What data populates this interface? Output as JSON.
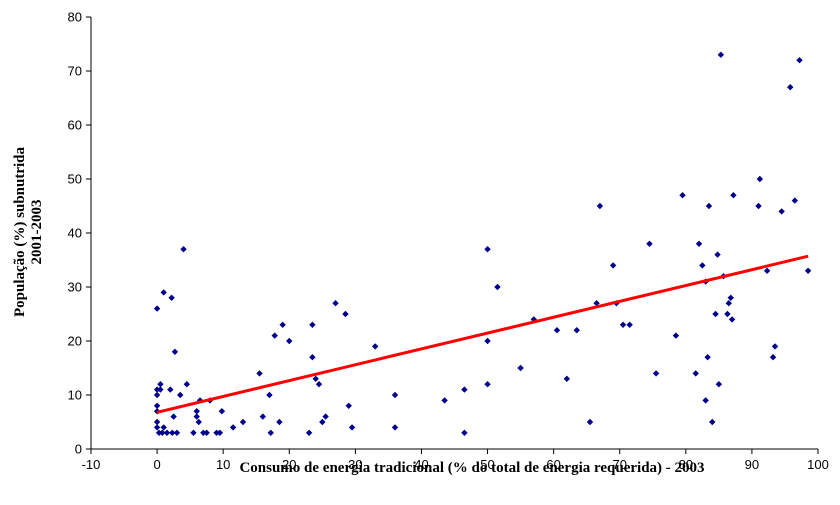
{
  "chart_data": {
    "type": "scatter",
    "xlabel": "Consumo de energia tradicional (% do total de energia requerida) - 2003",
    "ylabel": [
      "População (%) subnutrida",
      "2001-2003"
    ],
    "xlim": [
      -10,
      100
    ],
    "ylim": [
      0,
      80
    ],
    "xticks": [
      -10,
      0,
      10,
      20,
      30,
      40,
      50,
      60,
      70,
      80,
      90,
      100
    ],
    "yticks": [
      0,
      10,
      20,
      30,
      40,
      50,
      60,
      70,
      80
    ],
    "grid": false,
    "legend": "none",
    "marker_color": "#00008B",
    "trendline": {
      "color": "#FF0000",
      "x": [
        0,
        98.5
      ],
      "y": [
        6.8,
        35.7
      ]
    },
    "points": [
      [
        0,
        26
      ],
      [
        0,
        11
      ],
      [
        0,
        10
      ],
      [
        0,
        8
      ],
      [
        0,
        7
      ],
      [
        0,
        5
      ],
      [
        0,
        4
      ],
      [
        0.3,
        3
      ],
      [
        0.5,
        12
      ],
      [
        0.5,
        11
      ],
      [
        0.8,
        3
      ],
      [
        1,
        4
      ],
      [
        1,
        29
      ],
      [
        1.5,
        3
      ],
      [
        2,
        11
      ],
      [
        2.2,
        28
      ],
      [
        2.3,
        3
      ],
      [
        2.5,
        6
      ],
      [
        2.7,
        18
      ],
      [
        3,
        3
      ],
      [
        3.5,
        10
      ],
      [
        4,
        37
      ],
      [
        4.5,
        12
      ],
      [
        5.5,
        3
      ],
      [
        6,
        7
      ],
      [
        6,
        6
      ],
      [
        6.3,
        5
      ],
      [
        6.5,
        9
      ],
      [
        7,
        3
      ],
      [
        7.5,
        3
      ],
      [
        8,
        9
      ],
      [
        9,
        3
      ],
      [
        9.5,
        3
      ],
      [
        9.8,
        7
      ],
      [
        11.5,
        4
      ],
      [
        13,
        5
      ],
      [
        15.5,
        14
      ],
      [
        16,
        6
      ],
      [
        17,
        10
      ],
      [
        17.2,
        3
      ],
      [
        17.8,
        21
      ],
      [
        18.5,
        5
      ],
      [
        19,
        23
      ],
      [
        20,
        20
      ],
      [
        23,
        3
      ],
      [
        23.5,
        17
      ],
      [
        23.5,
        23
      ],
      [
        24,
        13
      ],
      [
        24.5,
        12
      ],
      [
        25,
        5
      ],
      [
        25.5,
        6
      ],
      [
        27,
        27
      ],
      [
        28.5,
        25
      ],
      [
        29,
        8
      ],
      [
        29.5,
        4
      ],
      [
        33,
        19
      ],
      [
        36,
        10
      ],
      [
        36,
        4
      ],
      [
        43.5,
        9
      ],
      [
        46.5,
        11
      ],
      [
        46.5,
        3
      ],
      [
        50,
        37
      ],
      [
        50,
        20
      ],
      [
        50,
        12
      ],
      [
        51.5,
        30
      ],
      [
        55,
        15
      ],
      [
        57,
        24
      ],
      [
        60.5,
        22
      ],
      [
        62,
        13
      ],
      [
        63.5,
        22
      ],
      [
        65.5,
        5
      ],
      [
        66.5,
        27
      ],
      [
        67,
        45
      ],
      [
        69,
        34
      ],
      [
        69.5,
        27
      ],
      [
        70.5,
        23
      ],
      [
        71.5,
        23
      ],
      [
        74.5,
        38
      ],
      [
        75.5,
        14
      ],
      [
        78.5,
        21
      ],
      [
        79.5,
        47
      ],
      [
        81.5,
        14
      ],
      [
        82,
        38
      ],
      [
        82.5,
        34
      ],
      [
        83,
        9
      ],
      [
        83,
        31
      ],
      [
        83.3,
        17
      ],
      [
        83.5,
        45
      ],
      [
        84,
        5
      ],
      [
        84.5,
        25
      ],
      [
        84.8,
        36
      ],
      [
        85,
        12
      ],
      [
        85.3,
        73
      ],
      [
        85.7,
        32
      ],
      [
        86.3,
        25
      ],
      [
        86.5,
        27
      ],
      [
        86.8,
        28
      ],
      [
        87,
        24
      ],
      [
        87.2,
        47
      ],
      [
        91,
        45
      ],
      [
        91.2,
        50
      ],
      [
        92.3,
        33
      ],
      [
        93.2,
        17
      ],
      [
        93.5,
        19
      ],
      [
        94.5,
        44
      ],
      [
        95.8,
        67
      ],
      [
        96.5,
        46
      ],
      [
        97.2,
        72
      ],
      [
        98.5,
        33
      ]
    ]
  }
}
